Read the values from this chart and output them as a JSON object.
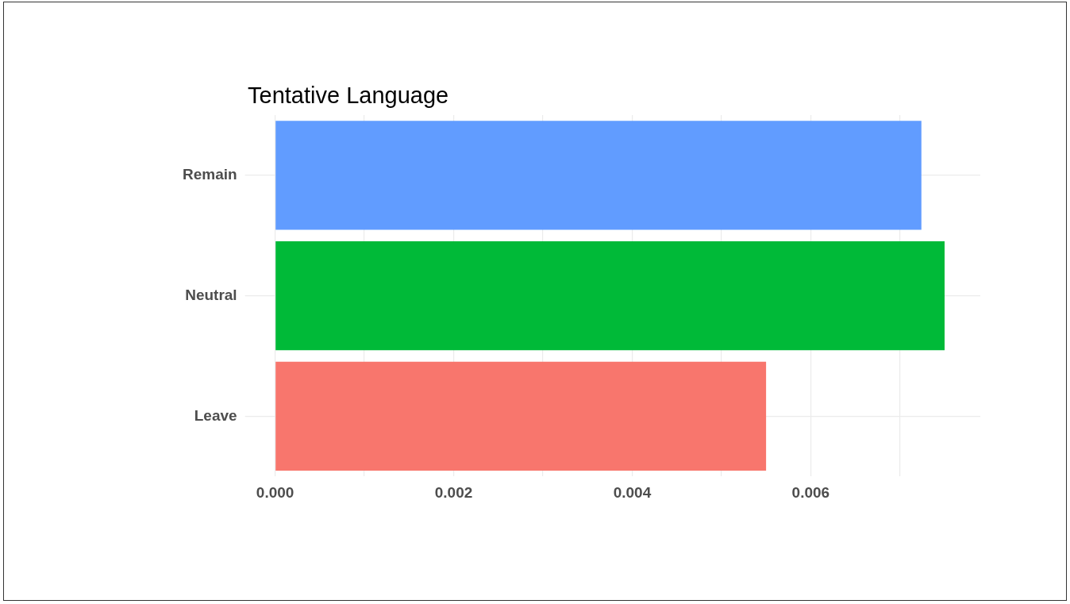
{
  "chart_data": {
    "type": "bar",
    "orientation": "horizontal",
    "title": "Tentative Language",
    "categories": [
      "Remain",
      "Neutral",
      "Leave"
    ],
    "values": [
      0.00724,
      0.0075,
      0.0055
    ],
    "colors": [
      "#619cff",
      "#00ba38",
      "#f8766d"
    ],
    "xlim": [
      0,
      0.0079
    ],
    "xticks": [
      {
        "value": 0,
        "label": "0.000"
      },
      {
        "value": 0.001,
        "label": null
      },
      {
        "value": 0.002,
        "label": "0.002"
      },
      {
        "value": 0.003,
        "label": null
      },
      {
        "value": 0.004,
        "label": "0.004"
      },
      {
        "value": 0.005,
        "label": null
      },
      {
        "value": 0.006,
        "label": "0.006"
      },
      {
        "value": 0.007,
        "label": null
      }
    ],
    "grid": true,
    "legend": false
  }
}
